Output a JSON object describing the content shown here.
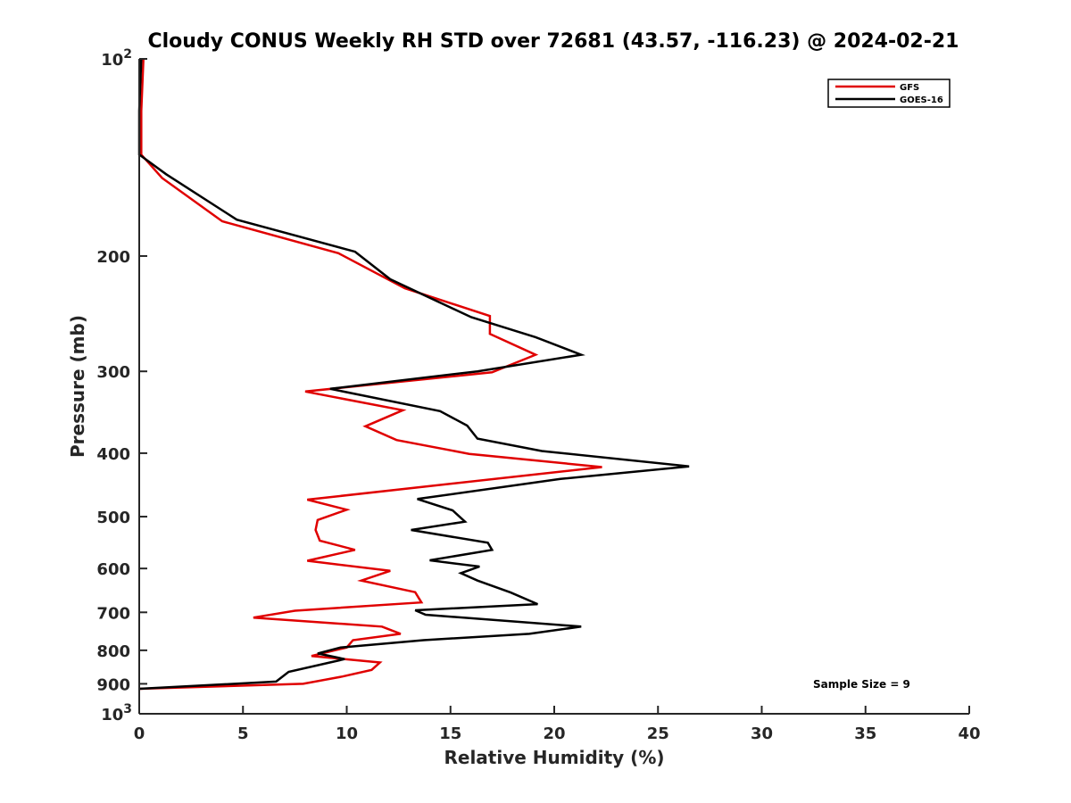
{
  "chart_data": {
    "type": "line",
    "title": "Cloudy CONUS Weekly RH STD over 72681 (43.57, -116.23) @ 2024-02-21",
    "xlabel": "Relative Humidity (%)",
    "ylabel": "Pressure (mb)",
    "xlim": [
      0,
      40
    ],
    "ylim": [
      100,
      1000
    ],
    "yscale": "log",
    "y_reversed": true,
    "grid": false,
    "legend_position": "top-right",
    "x_ticks": [
      "0",
      "5",
      "10",
      "15",
      "20",
      "25",
      "30",
      "35",
      "40"
    ],
    "y_ticks": [
      {
        "value": 100,
        "base": "10",
        "exp": "2"
      },
      {
        "value": 200,
        "label": "200"
      },
      {
        "value": 300,
        "label": "300"
      },
      {
        "value": 400,
        "label": "400"
      },
      {
        "value": 500,
        "label": "500"
      },
      {
        "value": 600,
        "label": "600"
      },
      {
        "value": 700,
        "label": "700"
      },
      {
        "value": 800,
        "label": "800"
      },
      {
        "value": 900,
        "label": "900"
      },
      {
        "value": 1000,
        "base": "10",
        "exp": "3"
      }
    ],
    "annotation": "Sample Size = 9",
    "series": [
      {
        "name": "GFS",
        "color": "#e00000",
        "points": [
          [
            0.2,
            100
          ],
          [
            0.1,
            120
          ],
          [
            0.1,
            140
          ],
          [
            1.1,
            152
          ],
          [
            4.0,
            177
          ],
          [
            9.6,
            198
          ],
          [
            12.8,
            224
          ],
          [
            16.9,
            247
          ],
          [
            16.9,
            263
          ],
          [
            19.1,
            283
          ],
          [
            17.0,
            301
          ],
          [
            8.0,
            322
          ],
          [
            12.7,
            344
          ],
          [
            10.9,
            364
          ],
          [
            12.4,
            382
          ],
          [
            15.9,
            401
          ],
          [
            22.3,
            420
          ],
          [
            8.1,
            471
          ],
          [
            10.0,
            488
          ],
          [
            8.6,
            506
          ],
          [
            8.5,
            524
          ],
          [
            8.7,
            544
          ],
          [
            10.4,
            562
          ],
          [
            8.1,
            584
          ],
          [
            12.1,
            605
          ],
          [
            10.7,
            626
          ],
          [
            13.3,
            652
          ],
          [
            13.6,
            676
          ],
          [
            7.5,
            696
          ],
          [
            5.5,
            713
          ],
          [
            11.7,
            736
          ],
          [
            12.6,
            755
          ],
          [
            10.3,
            772
          ],
          [
            10.0,
            792
          ],
          [
            8.3,
            816
          ],
          [
            11.6,
            835
          ],
          [
            11.2,
            857
          ],
          [
            9.8,
            877
          ],
          [
            7.9,
            900
          ],
          [
            0.0,
            916
          ]
        ]
      },
      {
        "name": "GOES-16",
        "color": "#000000",
        "points": [
          [
            0.1,
            100
          ],
          [
            0.0,
            120
          ],
          [
            0.0,
            140
          ],
          [
            1.3,
            150
          ],
          [
            4.7,
            176
          ],
          [
            10.4,
            197
          ],
          [
            12.1,
            217
          ],
          [
            16.0,
            248
          ],
          [
            19.1,
            266
          ],
          [
            21.3,
            283
          ],
          [
            16.3,
            300
          ],
          [
            9.2,
            319
          ],
          [
            14.5,
            345
          ],
          [
            15.8,
            363
          ],
          [
            16.3,
            380
          ],
          [
            19.4,
            397
          ],
          [
            26.5,
            419
          ],
          [
            20.3,
            438
          ],
          [
            13.4,
            470
          ],
          [
            15.1,
            489
          ],
          [
            15.7,
            509
          ],
          [
            13.1,
            524
          ],
          [
            16.8,
            548
          ],
          [
            17.0,
            562
          ],
          [
            14.0,
            583
          ],
          [
            16.4,
            596
          ],
          [
            15.5,
            610
          ],
          [
            16.3,
            626
          ],
          [
            17.9,
            653
          ],
          [
            19.2,
            680
          ],
          [
            13.3,
            695
          ],
          [
            13.8,
            706
          ],
          [
            21.3,
            736
          ],
          [
            18.8,
            755
          ],
          [
            13.7,
            772
          ],
          [
            9.7,
            792
          ],
          [
            8.6,
            809
          ],
          [
            9.9,
            825
          ],
          [
            7.2,
            863
          ],
          [
            6.6,
            893
          ],
          [
            0.0,
            916
          ]
        ]
      }
    ]
  }
}
